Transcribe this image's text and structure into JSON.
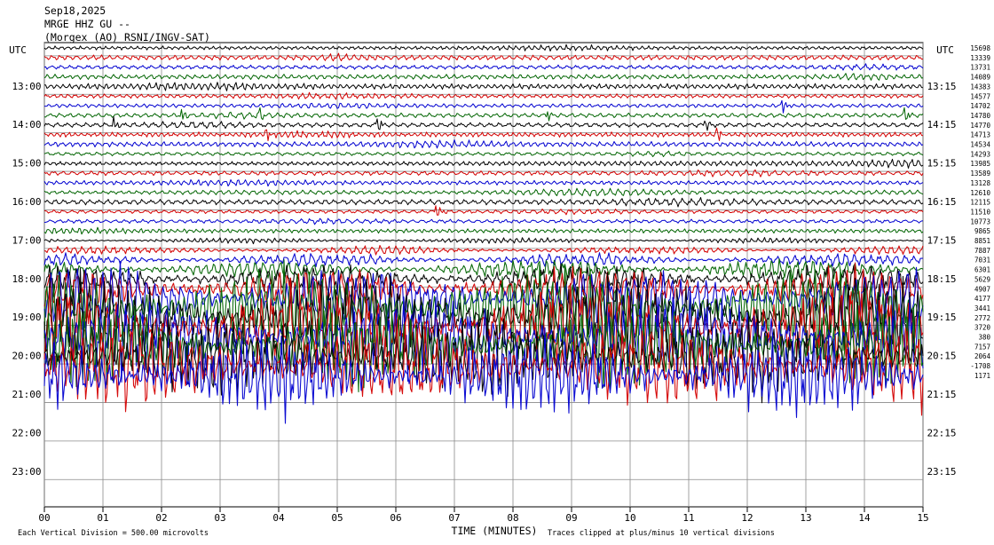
{
  "header": {
    "date": "Sep18,2025",
    "station": "MRGE HHZ GU --",
    "network": "(Morgex (AO) RSNI/INGV-SAT)"
  },
  "axes": {
    "left_label": "UTC",
    "right_label": "UTC",
    "xlabel": "TIME (MINUTES)",
    "x_ticks": [
      "00",
      "01",
      "02",
      "03",
      "04",
      "05",
      "06",
      "07",
      "08",
      "09",
      "10",
      "11",
      "12",
      "13",
      "14",
      "15"
    ],
    "left_hours": [
      "13:00",
      "14:00",
      "15:00",
      "16:00",
      "17:00",
      "18:00",
      "19:00",
      "20:00",
      "21:00",
      "22:00",
      "23:00"
    ],
    "right_hours": [
      "13:15",
      "14:15",
      "15:15",
      "16:15",
      "17:15",
      "18:15",
      "19:15",
      "20:15",
      "21:15",
      "22:15",
      "23:15"
    ]
  },
  "footer": {
    "division": "Each Vertical Division =  500.00 microvolts",
    "clipping": "Traces clipped at plus/minus 10 vertical divisions"
  },
  "colors": {
    "cycle": [
      "#000000",
      "#d40000",
      "#0000d0",
      "#006400"
    ]
  },
  "chart_data": {
    "type": "line",
    "title": "MRGE HHZ GU --",
    "xlabel": "TIME (MINUTES)",
    "xlim": [
      0,
      15
    ],
    "trace_offsets": [
      "15698",
      "13339",
      "13731",
      "14089",
      "14383",
      "14577",
      "14702",
      "14780",
      "14770",
      "14713",
      "14534",
      "14293",
      "13985",
      "13589",
      "13128",
      "12610",
      "12115",
      "11510",
      "10773",
      "9865",
      "8851",
      "7887",
      "7031",
      "6301",
      "5629",
      "4907",
      "4177",
      "3441",
      "2772",
      "3720",
      "380",
      "7157",
      "2064",
      "-1708",
      "1171"
    ],
    "events": [
      {
        "trace": 7,
        "minute": 2.35
      },
      {
        "trace": 7,
        "minute": 3.7
      },
      {
        "trace": 7,
        "minute": 8.6
      },
      {
        "trace": 7,
        "minute": 14.7
      },
      {
        "trace": 8,
        "minute": 1.2
      },
      {
        "trace": 8,
        "minute": 5.7
      },
      {
        "trace": 8,
        "minute": 11.3
      },
      {
        "trace": 9,
        "minute": 3.8
      },
      {
        "trace": 9,
        "minute": 11.5
      },
      {
        "trace": 17,
        "minute": 6.7
      },
      {
        "trace": 6,
        "minute": 12.6
      }
    ]
  }
}
